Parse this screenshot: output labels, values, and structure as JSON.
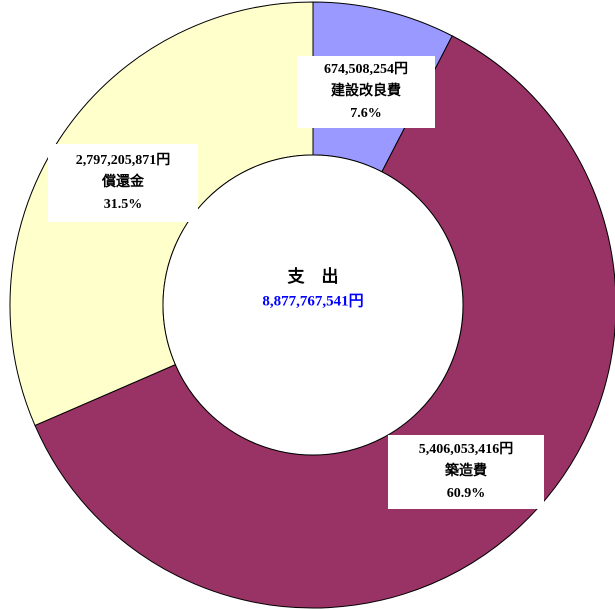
{
  "chart_data": {
    "type": "pie",
    "center_title": "支　出",
    "total": 8877767541,
    "total_label": "8,877,767,541円",
    "total_color": "#0000ff",
    "categories": [
      "建設改良費",
      "築造費",
      "償還金"
    ],
    "values": [
      674508254,
      5406053416,
      2797205871
    ],
    "value_labels": [
      "674,508,254円",
      "5,406,053,416円",
      "2,797,205,871円"
    ],
    "percentages": [
      7.6,
      60.9,
      31.5
    ],
    "percentage_labels": [
      "7.6%",
      "60.9%",
      "31.5%"
    ],
    "colors": [
      "#9999ff",
      "#993366",
      "#ffffcc"
    ]
  }
}
